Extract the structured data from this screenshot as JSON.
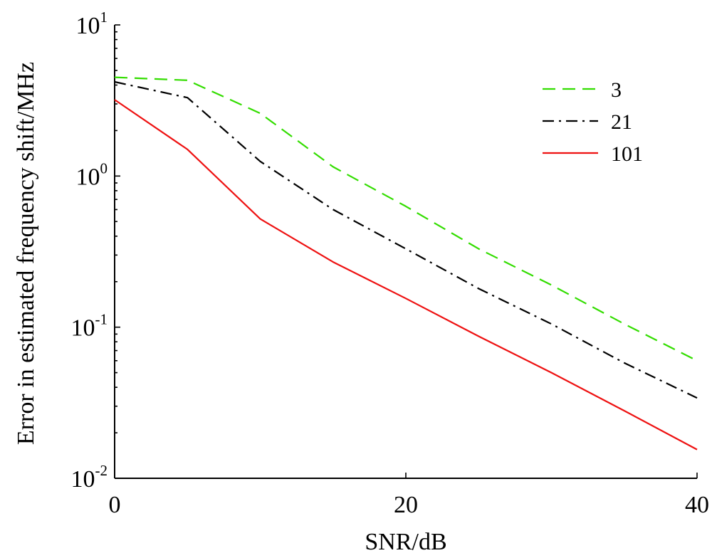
{
  "chart_data": {
    "type": "line",
    "title": "",
    "xlabel": "SNR/dB",
    "ylabel": "Error in estimated frequency shift/MHz",
    "xlim": [
      0,
      40
    ],
    "ylim": [
      0.01,
      10
    ],
    "yscale": "log",
    "grid": false,
    "legend_position": "top-right",
    "x_ticks": [
      "0",
      "20",
      "40"
    ],
    "y_ticks": [
      {
        "base": "10",
        "exp": "-2",
        "value": 0.01
      },
      {
        "base": "10",
        "exp": "-1",
        "value": 0.1
      },
      {
        "base": "10",
        "exp": "0",
        "value": 1
      },
      {
        "base": "10",
        "exp": "1",
        "value": 10
      }
    ],
    "x": [
      0,
      5,
      10,
      15,
      20,
      25,
      30,
      35,
      40
    ],
    "series": [
      {
        "name": "3",
        "color": "#33dd00",
        "dash": "dashed",
        "values": [
          4.5,
          4.3,
          2.6,
          1.15,
          0.63,
          0.33,
          0.19,
          0.105,
          0.06
        ]
      },
      {
        "name": "21",
        "color": "#000000",
        "dash": "dashdot",
        "values": [
          4.2,
          3.3,
          1.25,
          0.6,
          0.33,
          0.18,
          0.105,
          0.058,
          0.034
        ]
      },
      {
        "name": "101",
        "color": "#ee1111",
        "dash": "solid",
        "values": [
          3.2,
          1.5,
          0.52,
          0.27,
          0.155,
          0.087,
          0.05,
          0.028,
          0.0155
        ]
      }
    ]
  }
}
